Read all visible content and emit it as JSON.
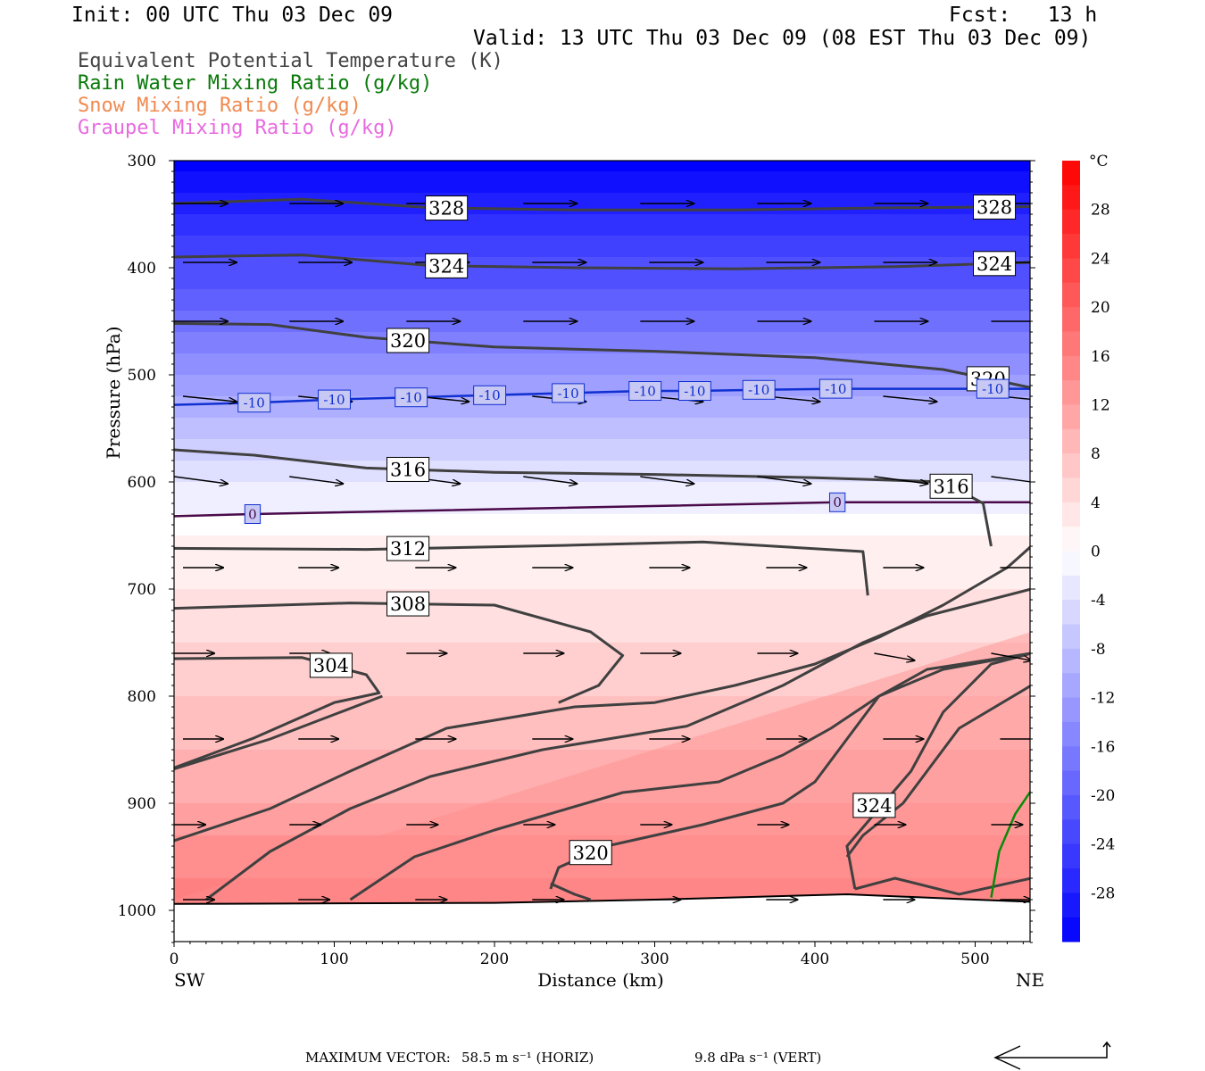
{
  "header": {
    "init": "Init: 00 UTC Thu 03 Dec 09",
    "fcst": "Fcst:   13 h",
    "valid": "Valid: 13 UTC Thu 03 Dec 09 (08 EST Thu 03 Dec 09)"
  },
  "legend": [
    {
      "label": "Equivalent Potential Temperature (K)",
      "color": "#444444"
    },
    {
      "label": "Rain Water Mixing Ratio (g/kg)",
      "color": "#0a7a0a"
    },
    {
      "label": "Snow Mixing Ratio (g/kg)",
      "color": "#f08a50"
    },
    {
      "label": "Graupel Mixing Ratio (g/kg)",
      "color": "#e86ae0"
    }
  ],
  "footer": {
    "max_vector_label": "MAXIMUM VECTOR:",
    "horiz": "58.5 m s⁻¹ (HORIZ)",
    "vert": "9.8 dPa s⁻¹ (VERT)"
  },
  "chart_data": {
    "type": "heatmap",
    "xlabel": "Distance (km)",
    "ylabel": "Pressure (hPa)",
    "x_ticks": [
      0,
      100,
      200,
      300,
      400,
      500
    ],
    "xlim": [
      0,
      535
    ],
    "y_ticks": [
      300,
      400,
      500,
      600,
      700,
      800,
      900,
      1000
    ],
    "ylim": [
      1030,
      300
    ],
    "x_end_labels": {
      "left": "SW",
      "right": "NE"
    },
    "colorbar": {
      "unit": "°C",
      "ticks": [
        28,
        24,
        20,
        16,
        12,
        8,
        4,
        0,
        -4,
        -8,
        -12,
        -16,
        -20,
        -24,
        -28
      ],
      "levels": [
        -32,
        -30,
        -28,
        -26,
        -24,
        -22,
        -20,
        -18,
        -16,
        -14,
        -12,
        -10,
        -8,
        -6,
        -4,
        -2,
        0,
        2,
        4,
        6,
        8,
        10,
        12,
        14,
        16,
        18,
        20,
        22,
        24,
        26,
        28,
        30,
        32
      ]
    },
    "temperature_profile_c": [
      {
        "p": 300,
        "t": -32
      },
      {
        "p": 340,
        "t": -28
      },
      {
        "p": 380,
        "t": -24
      },
      {
        "p": 420,
        "t": -21
      },
      {
        "p": 460,
        "t": -17
      },
      {
        "p": 500,
        "t": -13
      },
      {
        "p": 530,
        "t": -10
      },
      {
        "p": 560,
        "t": -7
      },
      {
        "p": 590,
        "t": -4
      },
      {
        "p": 620,
        "t": -1.5
      },
      {
        "p": 650,
        "t": 1
      },
      {
        "p": 700,
        "t": 3
      },
      {
        "p": 750,
        "t": 5
      },
      {
        "p": 800,
        "t": 7
      },
      {
        "p": 850,
        "t": 9
      },
      {
        "p": 900,
        "t": 11
      },
      {
        "p": 950,
        "t": 14
      },
      {
        "p": 1000,
        "t": 17
      }
    ],
    "isotherm_labels": [
      {
        "value": "-10",
        "x": [
          50,
          100,
          148,
          197,
          246,
          294,
          325,
          365,
          413,
          511
        ],
        "p": [
          526,
          523,
          521,
          519,
          517,
          515,
          515,
          514,
          513,
          513
        ]
      },
      {
        "value": "0",
        "x": [
          49,
          414
        ],
        "p": [
          630,
          619
        ]
      }
    ],
    "theta_e_contours": [
      {
        "value": 328,
        "x": [
          0,
          80,
          160,
          250,
          350,
          450,
          535
        ],
        "p": [
          340,
          336,
          344,
          346,
          346,
          344,
          343
        ],
        "labels_x": [
          170,
          512
        ]
      },
      {
        "value": 324,
        "x": [
          0,
          80,
          160,
          250,
          350,
          450,
          535
        ],
        "p": [
          390,
          388,
          398,
          400,
          401,
          399,
          395
        ],
        "labels_x": [
          170,
          512
        ]
      },
      {
        "value": 320,
        "x": [
          0,
          60,
          120,
          200,
          300,
          400,
          480,
          535
        ],
        "p": [
          452,
          453,
          465,
          474,
          478,
          484,
          495,
          512
        ],
        "labels_x": [
          146,
          508
        ]
      },
      {
        "value": 316,
        "x": [
          0,
          50,
          120,
          200,
          300,
          400,
          480,
          505,
          510
        ],
        "p": [
          570,
          575,
          587,
          591,
          593,
          596,
          600,
          620,
          660
        ],
        "labels_x": [
          146,
          485
        ]
      },
      {
        "value": 312,
        "x": [
          0,
          120,
          250,
          330,
          430,
          433
        ],
        "p": [
          662,
          663,
          659,
          656,
          665,
          706
        ],
        "labels_x": [
          146
        ]
      },
      {
        "value": 308,
        "x": [
          0,
          110,
          200,
          260,
          280,
          265,
          240
        ],
        "p": [
          718,
          713,
          715,
          740,
          762,
          790,
          806
        ],
        "labels_x": [
          146
        ]
      },
      {
        "value": 304,
        "x": [
          0,
          80,
          120,
          128,
          100,
          50,
          0
        ],
        "p": [
          765,
          764,
          780,
          797,
          806,
          839,
          867
        ],
        "labels_x": [
          98
        ]
      }
    ],
    "wind_vector_rows_hpa": [
      340,
      395,
      450,
      520,
      595,
      680,
      760,
      840,
      920,
      990
    ],
    "wind_vector_columns_km": [
      0,
      72,
      145,
      218,
      291,
      364,
      437,
      510
    ],
    "rain_contour": {
      "x": [
        510,
        515,
        525,
        535
      ],
      "p": [
        988,
        945,
        910,
        888
      ]
    }
  }
}
